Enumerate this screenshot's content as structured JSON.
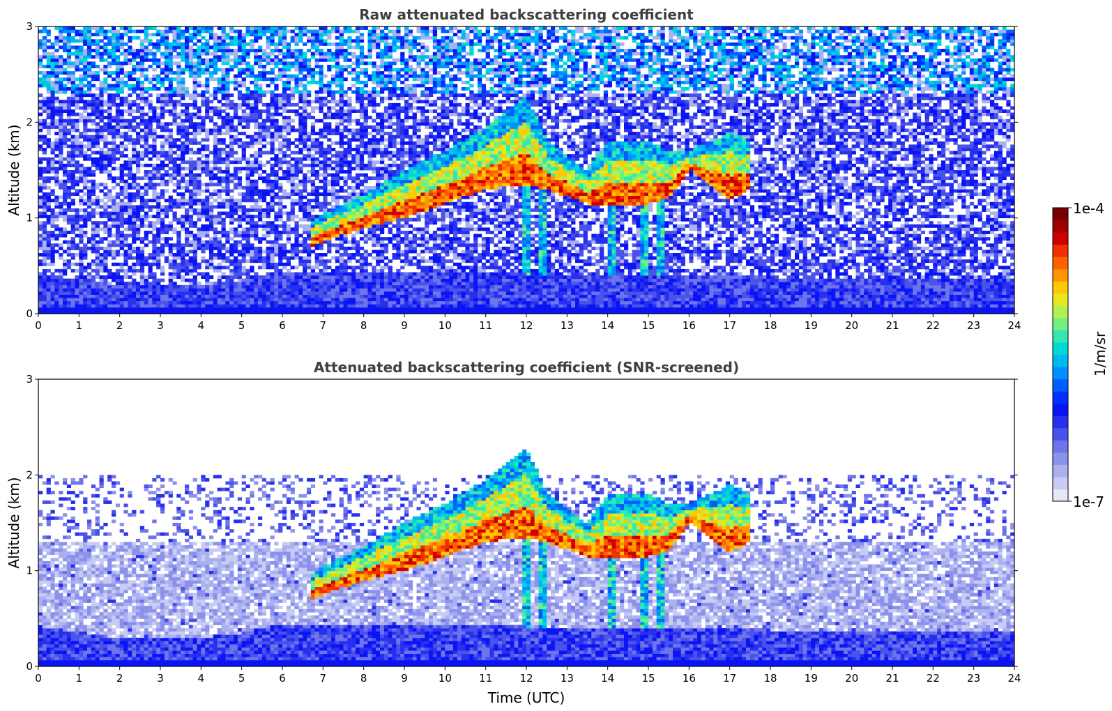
{
  "chart_data": [
    {
      "type": "heatmap",
      "title": "Raw attenuated backscattering coefficient",
      "xlabel": "",
      "ylabel": "Altitude (km)",
      "xlim": [
        0,
        24
      ],
      "ylim": [
        0,
        3
      ],
      "x_ticks": [
        "0",
        "1",
        "2",
        "3",
        "4",
        "5",
        "6",
        "7",
        "8",
        "9",
        "10",
        "11",
        "12",
        "13",
        "14",
        "15",
        "16",
        "17",
        "18",
        "19",
        "20",
        "21",
        "22",
        "23",
        "24"
      ],
      "y_ticks": [
        "0",
        "1",
        "2",
        "3"
      ],
      "features": {
        "surface_layer_top_km": [
          [
            0,
            0.42
          ],
          [
            2,
            0.3
          ],
          [
            4,
            0.3
          ],
          [
            5,
            0.35
          ],
          [
            6,
            0.45
          ],
          [
            24,
            0.35
          ]
        ],
        "cloud_layer_base_km": [
          [
            6.7,
            0.7
          ],
          [
            7,
            0.75
          ],
          [
            8,
            0.9
          ],
          [
            9,
            1.0
          ],
          [
            10,
            1.15
          ],
          [
            11,
            1.3
          ],
          [
            12,
            1.35
          ],
          [
            12.5,
            1.3
          ],
          [
            13.5,
            1.15
          ],
          [
            14,
            1.15
          ],
          [
            15,
            1.15
          ],
          [
            15.5,
            1.2
          ],
          [
            16,
            1.5
          ],
          [
            17,
            1.2
          ],
          [
            17.5,
            1.3
          ]
        ],
        "cloud_layer_top_km": [
          [
            6.7,
            0.95
          ],
          [
            7,
            1.05
          ],
          [
            8,
            1.25
          ],
          [
            9,
            1.5
          ],
          [
            10,
            1.7
          ],
          [
            11,
            1.95
          ],
          [
            12,
            2.3
          ],
          [
            12.5,
            1.8
          ],
          [
            13.5,
            1.5
          ],
          [
            14,
            1.8
          ],
          [
            15,
            1.8
          ],
          [
            15.5,
            1.7
          ],
          [
            16,
            1.7
          ],
          [
            17,
            1.9
          ],
          [
            17.5,
            1.8
          ]
        ],
        "precipitation_streaks_hours": [
          12.0,
          12.4,
          14.1,
          14.9,
          15.3
        ],
        "noise_level": "high"
      }
    },
    {
      "type": "heatmap",
      "title": "Attenuated backscattering coefficient (SNR-screened)",
      "xlabel": "Time (UTC)",
      "ylabel": "Altitude (km)",
      "xlim": [
        0,
        24
      ],
      "ylim": [
        0,
        3
      ],
      "x_ticks": [
        "0",
        "1",
        "2",
        "3",
        "4",
        "5",
        "6",
        "7",
        "8",
        "9",
        "10",
        "11",
        "12",
        "13",
        "14",
        "15",
        "16",
        "17",
        "18",
        "19",
        "20",
        "21",
        "22",
        "23",
        "24"
      ],
      "y_ticks": [
        "0",
        "1",
        "2",
        "3"
      ],
      "features": {
        "surface_layer_top_km": [
          [
            0,
            0.42
          ],
          [
            2,
            0.3
          ],
          [
            4,
            0.3
          ],
          [
            5,
            0.35
          ],
          [
            6,
            0.45
          ],
          [
            24,
            0.35
          ]
        ],
        "cloud_layer_base_km": [
          [
            6.7,
            0.7
          ],
          [
            7,
            0.75
          ],
          [
            8,
            0.9
          ],
          [
            9,
            1.0
          ],
          [
            10,
            1.15
          ],
          [
            11,
            1.3
          ],
          [
            12,
            1.35
          ],
          [
            12.5,
            1.3
          ],
          [
            13.5,
            1.15
          ],
          [
            14,
            1.15
          ],
          [
            15,
            1.15
          ],
          [
            15.5,
            1.2
          ],
          [
            16,
            1.5
          ],
          [
            17,
            1.2
          ],
          [
            17.5,
            1.3
          ]
        ],
        "cloud_layer_top_km": [
          [
            6.7,
            0.95
          ],
          [
            7,
            1.05
          ],
          [
            8,
            1.25
          ],
          [
            9,
            1.5
          ],
          [
            10,
            1.7
          ],
          [
            11,
            1.95
          ],
          [
            12,
            2.3
          ],
          [
            12.5,
            1.8
          ],
          [
            13.5,
            1.5
          ],
          [
            14,
            1.8
          ],
          [
            15,
            1.8
          ],
          [
            15.5,
            1.7
          ],
          [
            16,
            1.7
          ],
          [
            17,
            1.9
          ],
          [
            17.5,
            1.8
          ]
        ],
        "precipitation_streaks_hours": [
          12.0,
          12.4,
          14.1,
          14.9,
          15.3
        ],
        "noise_level": "screened"
      }
    }
  ],
  "colorbar": {
    "label": "1/m/sr",
    "max_label": "1e-4",
    "min_label": "1e-7",
    "colors": [
      "#e6e8fa",
      "#c8ccf5",
      "#aab0f0",
      "#8c92ec",
      "#6e74ea",
      "#4a52ec",
      "#2830f0",
      "#0a14f5",
      "#0030ff",
      "#0060ff",
      "#0090ff",
      "#00b8f0",
      "#00d8d8",
      "#30e8b0",
      "#70f080",
      "#b0f050",
      "#e8e820",
      "#ffc800",
      "#ff9600",
      "#ff6000",
      "#f03000",
      "#d00000",
      "#a00000",
      "#780000"
    ]
  }
}
